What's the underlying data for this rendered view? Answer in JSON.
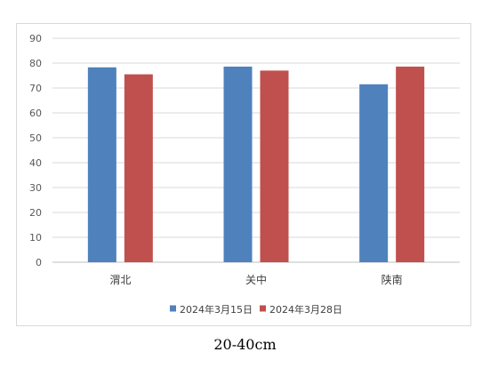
{
  "caption": "20-40cm",
  "chart_data": {
    "type": "bar",
    "title": "",
    "xlabel": "",
    "ylabel": "",
    "categories": [
      "渭北",
      "关中",
      "陕南"
    ],
    "series": [
      {
        "name": "2024年3月15日",
        "values": [
          78.3,
          78.6,
          71.5
        ],
        "color": "#4f81bd"
      },
      {
        "name": "2024年3月28日",
        "values": [
          75.5,
          77.0,
          78.6
        ],
        "color": "#c0504d"
      }
    ],
    "ylim": [
      0,
      90
    ],
    "yticks": [
      0,
      10,
      20,
      30,
      40,
      50,
      60,
      70,
      80,
      90
    ],
    "grid": true,
    "legend_position": "bottom"
  }
}
